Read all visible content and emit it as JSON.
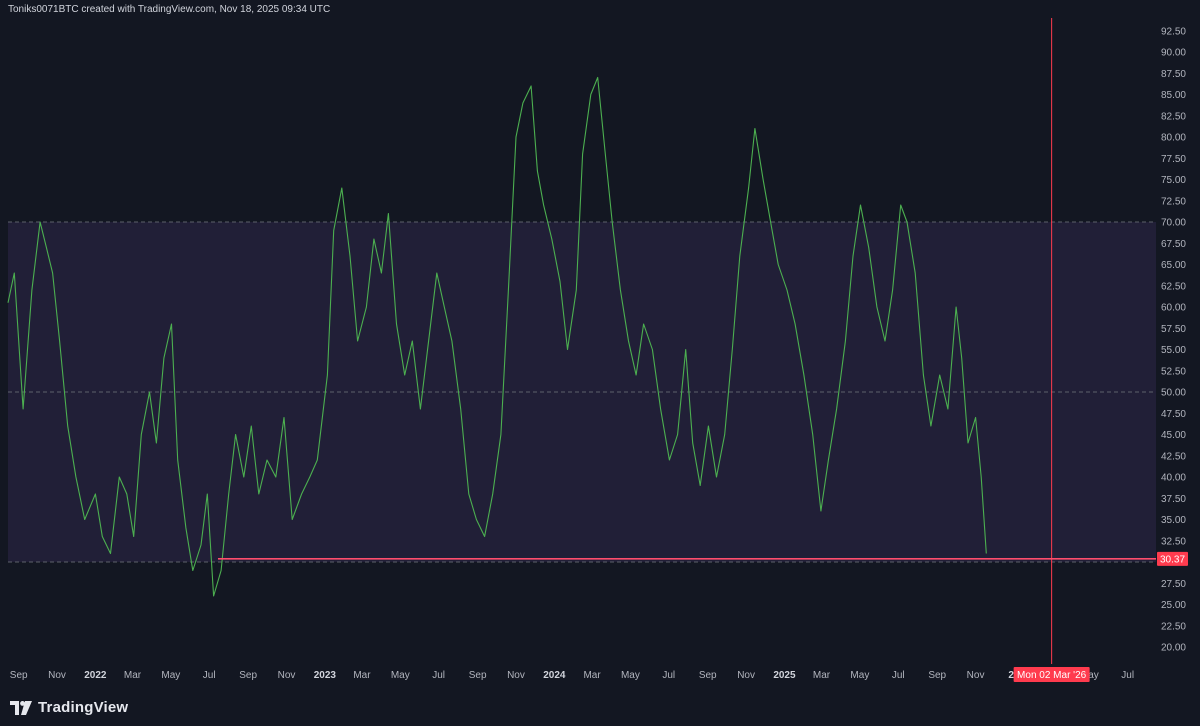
{
  "header": {
    "caption": "Toniks0071BTC created with TradingView.com, Nov 18, 2025 09:34 UTC"
  },
  "footer": {
    "brand": "TradingView"
  },
  "colors": {
    "bg": "#131722",
    "band": "#211f37",
    "line": "#4caf50",
    "support": "#ff4d6d",
    "marker": "#ff3b4e",
    "tick": "#b2b5be"
  },
  "chart_data": {
    "type": "line",
    "title": "",
    "xlabel": "",
    "ylabel": "",
    "ylim": [
      18,
      94
    ],
    "y_ticks": [
      "92.50",
      "90.00",
      "87.50",
      "85.00",
      "82.50",
      "80.00",
      "77.50",
      "75.00",
      "72.50",
      "70.00",
      "67.50",
      "65.00",
      "62.50",
      "60.00",
      "57.50",
      "55.00",
      "52.50",
      "50.00",
      "47.50",
      "45.00",
      "42.50",
      "40.00",
      "37.50",
      "35.00",
      "32.50",
      "30.00",
      "27.50",
      "25.00",
      "22.50",
      "20.00"
    ],
    "x_ticks": [
      "Sep",
      "Nov",
      "2022",
      "Mar",
      "May",
      "Jul",
      "Sep",
      "Nov",
      "2023",
      "Mar",
      "May",
      "Jul",
      "Sep",
      "Nov",
      "2024",
      "Mar",
      "May",
      "Jul",
      "Sep",
      "Nov",
      "2025",
      "Mar",
      "May",
      "Jul",
      "Sep",
      "Nov",
      "20",
      "May",
      "Jul"
    ],
    "x_tick_dates": [
      "2021-09",
      "2021-11",
      "2022-01",
      "2022-03",
      "2022-05",
      "2022-07",
      "2022-09",
      "2022-11",
      "2023-01",
      "2023-03",
      "2023-05",
      "2023-07",
      "2023-09",
      "2023-11",
      "2024-01",
      "2024-03",
      "2024-05",
      "2024-07",
      "2024-09",
      "2024-11",
      "2025-01",
      "2025-03",
      "2025-05",
      "2025-07",
      "2025-09",
      "2025-11",
      "2026-01",
      "2026-05",
      "2026-07"
    ],
    "x_range": [
      "2021-08-15",
      "2026-08-15"
    ],
    "band": [
      30,
      70
    ],
    "hlines": [
      30,
      50,
      70
    ],
    "support_line": {
      "from": "2022-07-15",
      "value": 30.37
    },
    "last_value_label": "30.37",
    "crosshair": {
      "date": "2026-03-02",
      "label": "Mon 02 Mar '26"
    },
    "series": [
      {
        "points": [
          [
            "2021-08-15",
            60.5
          ],
          [
            "2021-08-25",
            64
          ],
          [
            "2021-09-08",
            48
          ],
          [
            "2021-09-22",
            62
          ],
          [
            "2021-10-05",
            70
          ],
          [
            "2021-10-15",
            67
          ],
          [
            "2021-10-25",
            64
          ],
          [
            "2021-11-05",
            56
          ],
          [
            "2021-11-18",
            46
          ],
          [
            "2021-12-01",
            40
          ],
          [
            "2021-12-15",
            35
          ],
          [
            "2022-01-01",
            38
          ],
          [
            "2022-01-12",
            33
          ],
          [
            "2022-01-25",
            31
          ],
          [
            "2022-02-08",
            40
          ],
          [
            "2022-02-20",
            38
          ],
          [
            "2022-03-03",
            33
          ],
          [
            "2022-03-15",
            45
          ],
          [
            "2022-03-28",
            50
          ],
          [
            "2022-04-08",
            44
          ],
          [
            "2022-04-20",
            54
          ],
          [
            "2022-05-02",
            58
          ],
          [
            "2022-05-12",
            42
          ],
          [
            "2022-05-25",
            34
          ],
          [
            "2022-06-05",
            29
          ],
          [
            "2022-06-18",
            32
          ],
          [
            "2022-06-28",
            38
          ],
          [
            "2022-07-08",
            26
          ],
          [
            "2022-07-20",
            29
          ],
          [
            "2022-08-01",
            38
          ],
          [
            "2022-08-12",
            45
          ],
          [
            "2022-08-25",
            40
          ],
          [
            "2022-09-06",
            46
          ],
          [
            "2022-09-18",
            38
          ],
          [
            "2022-10-01",
            42
          ],
          [
            "2022-10-15",
            40
          ],
          [
            "2022-10-28",
            47
          ],
          [
            "2022-11-10",
            35
          ],
          [
            "2022-11-25",
            38
          ],
          [
            "2022-12-08",
            40
          ],
          [
            "2022-12-20",
            42
          ],
          [
            "2023-01-05",
            52
          ],
          [
            "2023-01-15",
            69
          ],
          [
            "2023-01-28",
            74
          ],
          [
            "2023-02-10",
            66
          ],
          [
            "2023-02-22",
            56
          ],
          [
            "2023-03-08",
            60
          ],
          [
            "2023-03-20",
            68
          ],
          [
            "2023-04-01",
            64
          ],
          [
            "2023-04-12",
            71
          ],
          [
            "2023-04-25",
            58
          ],
          [
            "2023-05-08",
            52
          ],
          [
            "2023-05-20",
            56
          ],
          [
            "2023-06-02",
            48
          ],
          [
            "2023-06-15",
            56
          ],
          [
            "2023-06-28",
            64
          ],
          [
            "2023-07-10",
            60
          ],
          [
            "2023-07-22",
            56
          ],
          [
            "2023-08-05",
            48
          ],
          [
            "2023-08-18",
            38
          ],
          [
            "2023-08-30",
            35
          ],
          [
            "2023-09-12",
            33
          ],
          [
            "2023-09-25",
            38
          ],
          [
            "2023-10-08",
            45
          ],
          [
            "2023-10-20",
            62
          ],
          [
            "2023-11-01",
            80
          ],
          [
            "2023-11-12",
            84
          ],
          [
            "2023-11-25",
            86
          ],
          [
            "2023-12-05",
            76
          ],
          [
            "2023-12-15",
            72
          ],
          [
            "2023-12-28",
            68
          ],
          [
            "2024-01-10",
            63
          ],
          [
            "2024-01-22",
            55
          ],
          [
            "2024-02-05",
            62
          ],
          [
            "2024-02-15",
            78
          ],
          [
            "2024-02-28",
            85
          ],
          [
            "2024-03-10",
            87
          ],
          [
            "2024-03-22",
            78
          ],
          [
            "2024-04-02",
            70
          ],
          [
            "2024-04-15",
            62
          ],
          [
            "2024-04-28",
            56
          ],
          [
            "2024-05-10",
            52
          ],
          [
            "2024-05-22",
            58
          ],
          [
            "2024-06-05",
            55
          ],
          [
            "2024-06-18",
            48
          ],
          [
            "2024-07-02",
            42
          ],
          [
            "2024-07-15",
            45
          ],
          [
            "2024-07-28",
            55
          ],
          [
            "2024-08-08",
            44
          ],
          [
            "2024-08-20",
            39
          ],
          [
            "2024-09-02",
            46
          ],
          [
            "2024-09-15",
            40
          ],
          [
            "2024-09-28",
            45
          ],
          [
            "2024-10-10",
            55
          ],
          [
            "2024-10-22",
            66
          ],
          [
            "2024-11-05",
            74
          ],
          [
            "2024-11-15",
            81
          ],
          [
            "2024-11-28",
            75
          ],
          [
            "2024-12-10",
            70
          ],
          [
            "2024-12-22",
            65
          ],
          [
            "2025-01-05",
            62
          ],
          [
            "2025-01-18",
            58
          ],
          [
            "2025-02-01",
            52
          ],
          [
            "2025-02-15",
            45
          ],
          [
            "2025-02-28",
            36
          ],
          [
            "2025-03-12",
            42
          ],
          [
            "2025-03-25",
            48
          ],
          [
            "2025-04-08",
            56
          ],
          [
            "2025-04-20",
            66
          ],
          [
            "2025-05-02",
            72
          ],
          [
            "2025-05-15",
            67
          ],
          [
            "2025-05-28",
            60
          ],
          [
            "2025-06-10",
            56
          ],
          [
            "2025-06-22",
            62
          ],
          [
            "2025-07-05",
            72
          ],
          [
            "2025-07-15",
            70
          ],
          [
            "2025-07-28",
            64
          ],
          [
            "2025-08-10",
            52
          ],
          [
            "2025-08-22",
            46
          ],
          [
            "2025-09-05",
            52
          ],
          [
            "2025-09-18",
            48
          ],
          [
            "2025-10-01",
            60
          ],
          [
            "2025-10-10",
            54
          ],
          [
            "2025-10-20",
            44
          ],
          [
            "2025-11-01",
            47
          ],
          [
            "2025-11-10",
            40
          ],
          [
            "2025-11-18",
            31
          ]
        ]
      }
    ]
  }
}
